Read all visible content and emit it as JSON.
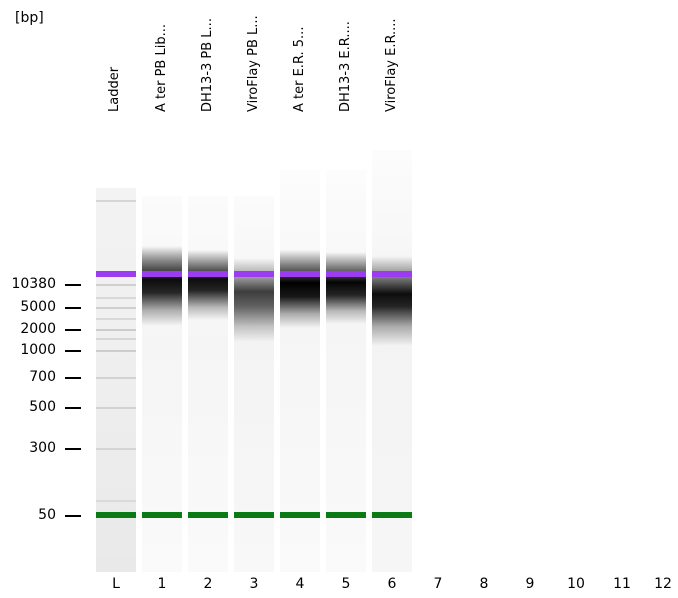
{
  "unit_label": "[bp]",
  "size_ladder": [
    "10380",
    "5000",
    "2000",
    "1000",
    "700",
    "500",
    "300",
    "50"
  ],
  "lanes": [
    {
      "id": "L",
      "title": "Ladder"
    },
    {
      "id": "1",
      "title": "A ter PB Lib..."
    },
    {
      "id": "2",
      "title": "DH13-3 PB L..."
    },
    {
      "id": "3",
      "title": "ViroFlay PB L..."
    },
    {
      "id": "4",
      "title": "A ter E.R. 5..."
    },
    {
      "id": "5",
      "title": "DH13-3 E.R...."
    },
    {
      "id": "6",
      "title": "ViroFlay E.R...."
    }
  ],
  "empty_lanes": [
    "7",
    "8",
    "9",
    "10",
    "11",
    "12"
  ],
  "colors": {
    "upper_marker": "#9b3cf0",
    "lower_marker": "#0a7a14",
    "lane_background": "#f0f0f0"
  }
}
